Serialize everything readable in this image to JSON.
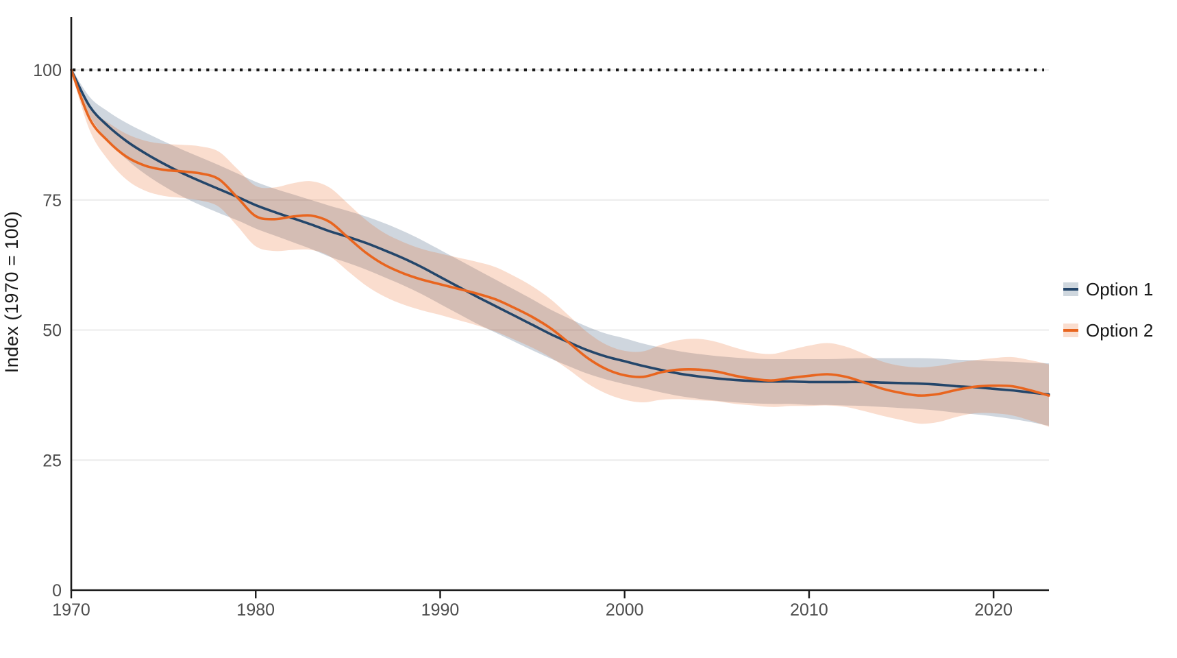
{
  "figure": {
    "y_axis_title": "Index (1970 = 100)",
    "y_ticks": [
      0,
      25,
      50,
      75,
      100
    ],
    "x_ticks": [
      1970,
      1980,
      1990,
      2000,
      2010,
      2020
    ],
    "reference_line": {
      "value": 100,
      "style": "dotted",
      "color": "#1a1a1a"
    },
    "legend": [
      {
        "label": "Option 1",
        "line_color": "#24466A",
        "band_color": "rgba(38,73,107,0.22)"
      },
      {
        "label": "Option 2",
        "line_color": "#E8651F",
        "band_color": "rgba(232,101,31,0.22)"
      }
    ],
    "colors": {
      "axis": "#1a1a1a",
      "tick_label": "#4d4d4d",
      "gridline": "#ebebeb",
      "background": "#ffffff"
    }
  },
  "chart_data": {
    "type": "line",
    "title": "",
    "xlabel": "",
    "ylabel": "Index (1970 = 100)",
    "xlim": [
      1970,
      2023
    ],
    "ylim": [
      0,
      110
    ],
    "grid": "horizontal-only",
    "legend_position": "right-center",
    "annotations": [
      "dotted horizontal reference line at y = 100"
    ],
    "x": [
      1970,
      1971,
      1972,
      1973,
      1974,
      1975,
      1976,
      1977,
      1978,
      1979,
      1980,
      1981,
      1982,
      1983,
      1984,
      1985,
      1986,
      1987,
      1988,
      1989,
      1990,
      1991,
      1992,
      1993,
      1994,
      1995,
      1996,
      1997,
      1998,
      1999,
      2000,
      2001,
      2002,
      2003,
      2004,
      2005,
      2006,
      2007,
      2008,
      2009,
      2010,
      2011,
      2012,
      2013,
      2014,
      2015,
      2016,
      2017,
      2018,
      2019,
      2020,
      2021,
      2022,
      2023
    ],
    "series": [
      {
        "name": "Option 1",
        "color": "#24466A",
        "band_opacity": 0.22,
        "values": [
          100,
          93.0,
          89.2,
          86.3,
          84.0,
          82.0,
          80.2,
          78.6,
          77.1,
          75.6,
          74.0,
          72.7,
          71.5,
          70.3,
          69.0,
          67.9,
          66.7,
          65.3,
          63.8,
          62.1,
          60.2,
          58.3,
          56.4,
          54.6,
          52.8,
          51.0,
          49.2,
          47.6,
          46.1,
          44.9,
          44.0,
          43.1,
          42.3,
          41.6,
          41.1,
          40.7,
          40.4,
          40.2,
          40.1,
          40.1,
          40.0,
          40.0,
          40.0,
          40.0,
          39.9,
          39.8,
          39.7,
          39.5,
          39.2,
          39.0,
          38.7,
          38.4,
          38.0,
          37.6
        ],
        "band_halfwidth": [
          0.4,
          1.8,
          2.8,
          3.5,
          4.0,
          4.3,
          4.5,
          4.6,
          4.6,
          4.5,
          4.5,
          4.5,
          4.6,
          4.7,
          4.9,
          5.0,
          5.1,
          5.2,
          5.2,
          5.2,
          5.2,
          5.2,
          5.2,
          5.1,
          5.0,
          4.9,
          4.7,
          4.6,
          4.5,
          4.4,
          4.4,
          4.3,
          4.3,
          4.3,
          4.3,
          4.3,
          4.3,
          4.3,
          4.3,
          4.3,
          4.4,
          4.4,
          4.5,
          4.6,
          4.7,
          4.8,
          4.9,
          5.0,
          5.1,
          5.2,
          5.3,
          5.5,
          5.7,
          6.0
        ]
      },
      {
        "name": "Option 2",
        "color": "#E8651F",
        "band_opacity": 0.22,
        "values": [
          100,
          90.6,
          86.3,
          83.3,
          81.6,
          80.8,
          80.5,
          80.1,
          79.0,
          75.5,
          71.9,
          71.3,
          71.8,
          72.0,
          70.8,
          67.8,
          64.8,
          62.5,
          60.9,
          59.7,
          58.8,
          57.9,
          57.0,
          55.9,
          54.3,
          52.5,
          50.3,
          47.5,
          44.6,
          42.5,
          41.3,
          41.0,
          41.9,
          42.4,
          42.4,
          42.0,
          41.2,
          40.6,
          40.3,
          40.8,
          41.2,
          41.5,
          41.0,
          39.9,
          38.7,
          37.9,
          37.4,
          37.7,
          38.5,
          39.1,
          39.3,
          39.2,
          38.4,
          37.4
        ],
        "band_halfwidth": [
          0.4,
          2.2,
          3.6,
          4.4,
          4.8,
          5.0,
          5.1,
          5.2,
          5.3,
          5.5,
          5.8,
          6.1,
          6.4,
          6.6,
          6.6,
          6.5,
          6.3,
          6.1,
          6.0,
          5.9,
          5.9,
          6.0,
          6.1,
          6.2,
          6.1,
          5.9,
          5.6,
          5.2,
          4.9,
          4.7,
          4.7,
          4.9,
          5.3,
          5.7,
          5.9,
          5.7,
          5.4,
          5.1,
          5.1,
          5.4,
          5.8,
          6.0,
          5.8,
          5.5,
          5.2,
          5.2,
          5.4,
          5.4,
          5.2,
          5.1,
          5.3,
          5.6,
          5.8,
          6.0
        ]
      }
    ]
  }
}
